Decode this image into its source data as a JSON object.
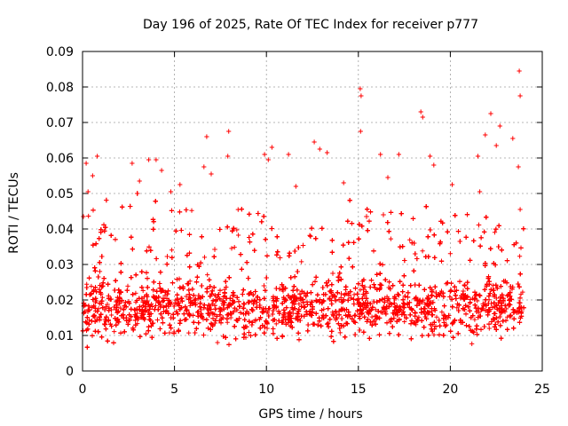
{
  "chart_data": {
    "type": "scatter",
    "title": "Day 196 of 2025, Rate Of TEC Index for receiver p777",
    "xlabel": "GPS time / hours",
    "ylabel": "ROTI / TECUs",
    "xlim": [
      0,
      25
    ],
    "ylim": [
      0,
      0.09
    ],
    "x_ticks": [
      0,
      5,
      10,
      15,
      20,
      25
    ],
    "x_tick_labels": [
      "0",
      "5",
      "10",
      "15",
      "20",
      "25"
    ],
    "y_ticks": [
      0,
      0.01,
      0.02,
      0.03,
      0.04,
      0.05,
      0.06,
      0.07,
      0.08,
      0.09
    ],
    "y_tick_labels": [
      "0",
      "0.01",
      "0.02",
      "0.03",
      "0.04",
      "0.05",
      "0.06",
      "0.07",
      "0.08",
      "0.09"
    ],
    "grid": true,
    "marker": "+",
    "series": [
      {
        "name": "ROTI",
        "color": "#ff0000",
        "sample_count": 6000,
        "x_range": [
          0,
          24
        ],
        "typical_range": [
          0.005,
          0.035
        ],
        "median_approx": 0.018,
        "points": [
          [
            0.05,
            0.0435
          ],
          [
            0.2,
            0.0585
          ],
          [
            0.3,
            0.0505
          ],
          [
            0.55,
            0.055
          ],
          [
            0.8,
            0.0605
          ],
          [
            2.7,
            0.0585
          ],
          [
            3.1,
            0.0535
          ],
          [
            3.6,
            0.0595
          ],
          [
            4.0,
            0.0595
          ],
          [
            4.3,
            0.0565
          ],
          [
            4.8,
            0.0505
          ],
          [
            5.3,
            0.0525
          ],
          [
            6.6,
            0.0575
          ],
          [
            6.75,
            0.066
          ],
          [
            7.0,
            0.0555
          ],
          [
            7.9,
            0.0605
          ],
          [
            7.95,
            0.0675
          ],
          [
            9.9,
            0.061
          ],
          [
            10.1,
            0.0595
          ],
          [
            10.3,
            0.063
          ],
          [
            11.2,
            0.061
          ],
          [
            11.6,
            0.052
          ],
          [
            12.6,
            0.0645
          ],
          [
            12.9,
            0.0625
          ],
          [
            13.3,
            0.0615
          ],
          [
            14.2,
            0.053
          ],
          [
            15.1,
            0.0795
          ],
          [
            15.15,
            0.0775
          ],
          [
            15.12,
            0.0675
          ],
          [
            16.2,
            0.061
          ],
          [
            16.6,
            0.0545
          ],
          [
            17.2,
            0.061
          ],
          [
            18.4,
            0.073
          ],
          [
            18.5,
            0.0715
          ],
          [
            18.9,
            0.0605
          ],
          [
            19.1,
            0.058
          ],
          [
            20.1,
            0.0525
          ],
          [
            21.5,
            0.0605
          ],
          [
            21.6,
            0.0505
          ],
          [
            21.9,
            0.0665
          ],
          [
            22.2,
            0.0725
          ],
          [
            22.5,
            0.0635
          ],
          [
            22.7,
            0.069
          ],
          [
            23.4,
            0.0655
          ],
          [
            23.75,
            0.0845
          ],
          [
            23.8,
            0.0775
          ],
          [
            23.7,
            0.0575
          ],
          [
            23.8,
            0.0455
          ]
        ]
      }
    ]
  }
}
